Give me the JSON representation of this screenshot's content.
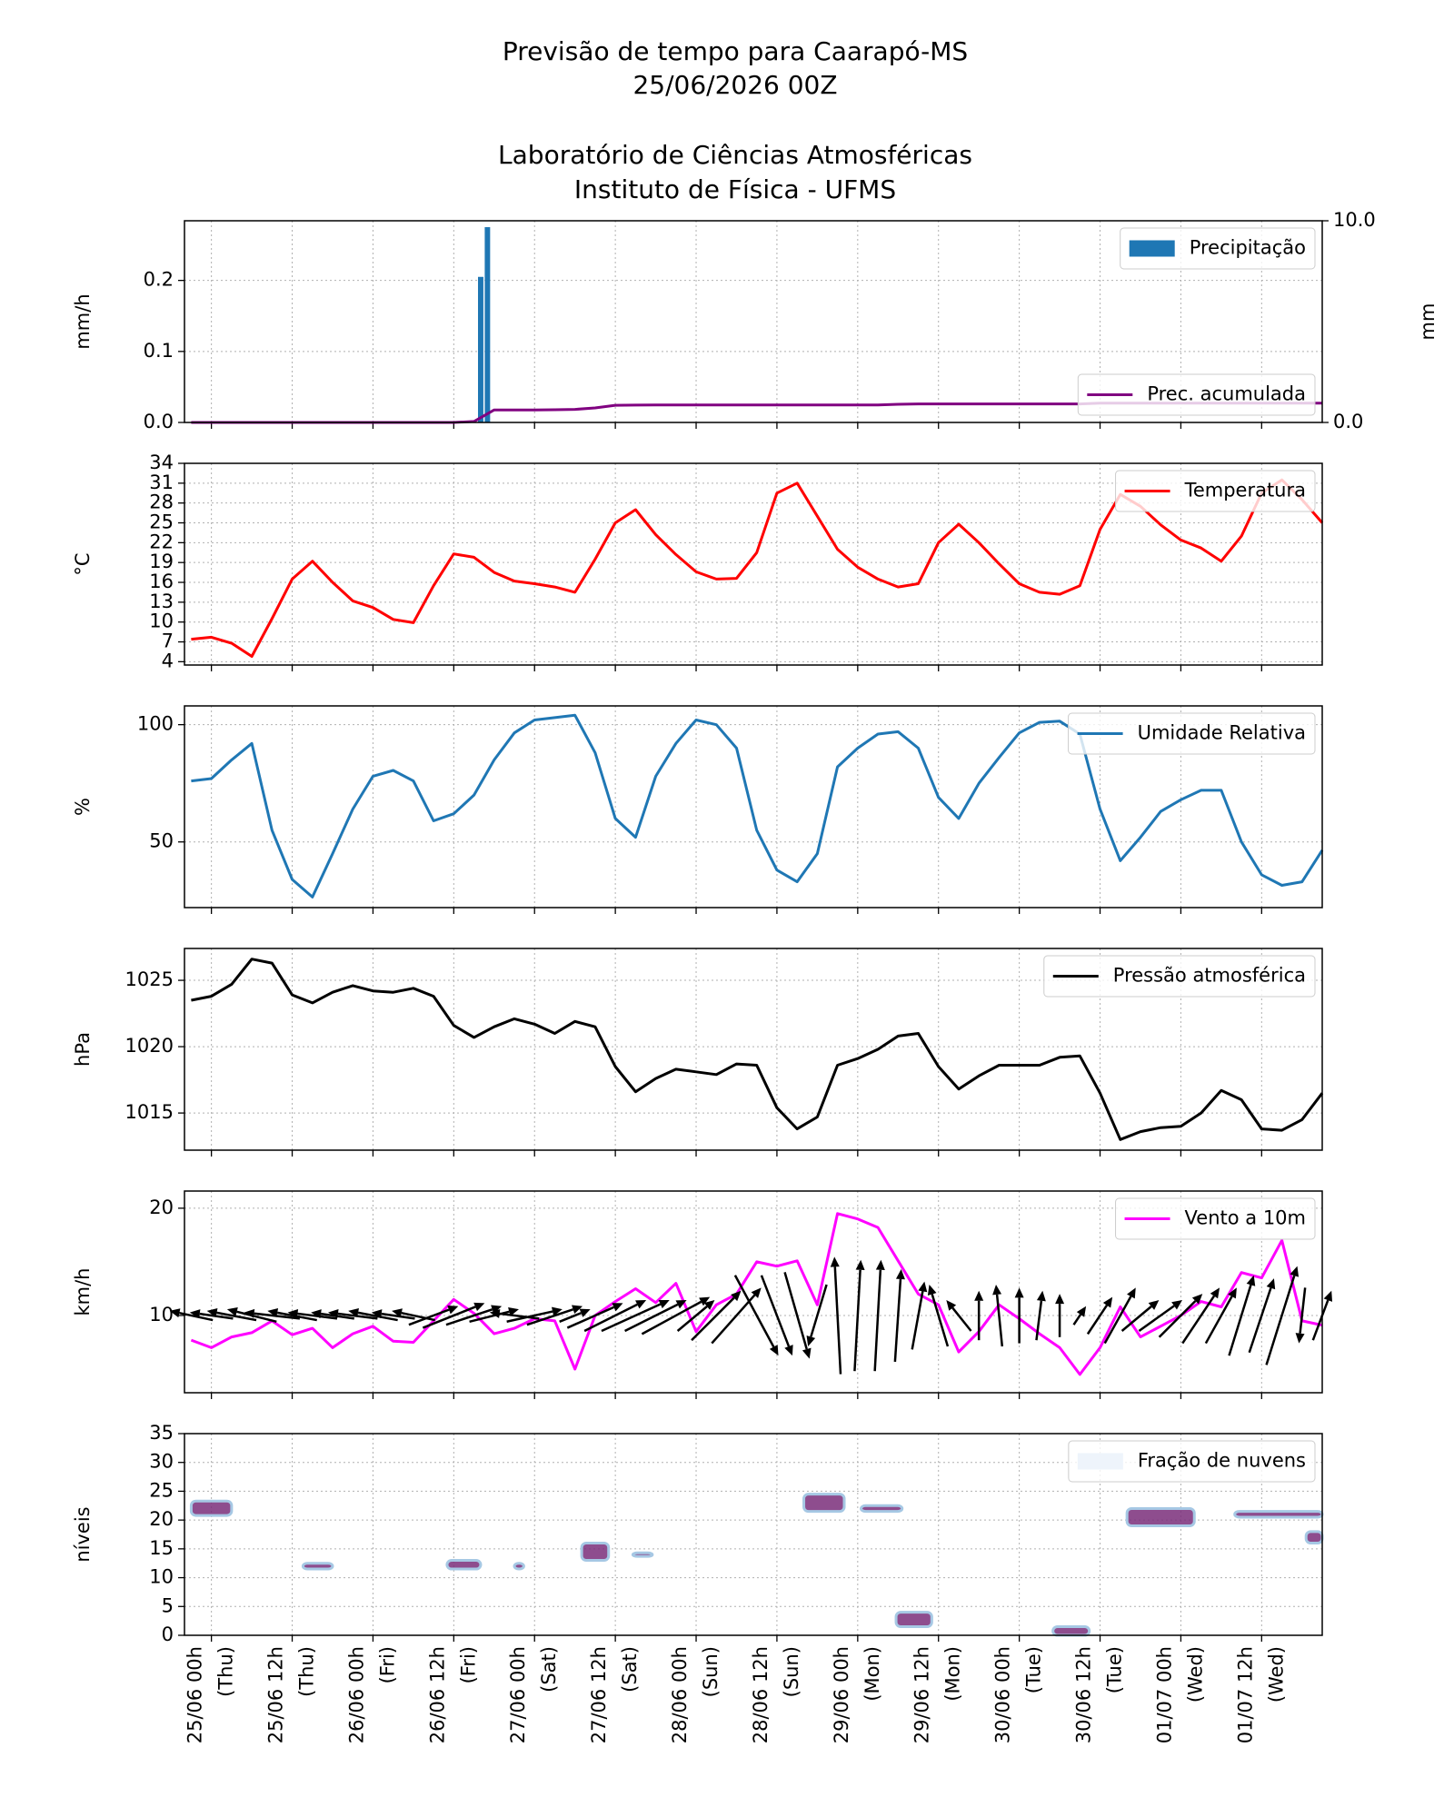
{
  "title": [
    "Previsão de tempo para Caarapó-MS",
    "25/06/2026 00Z",
    "Laboratório de Ciências Atmosféricas",
    "Instituto de Física - UFMS"
  ],
  "chart_data": [
    {
      "type": "bar",
      "ylabel": "mm/h",
      "y2label": "mm",
      "xlim": [
        -4,
        165
      ],
      "xticks": [
        0,
        12,
        24,
        36,
        48,
        60,
        72,
        84,
        96,
        108,
        120,
        132,
        144,
        156
      ],
      "ylim": [
        0,
        0.284
      ],
      "yticks": [
        {
          "value": 0,
          "label": "0.0"
        },
        0.1,
        0.2
      ],
      "y2lim": [
        0,
        10
      ],
      "y2ticks": [
        {
          "value": 0,
          "label": "0.0"
        },
        {
          "value": 10,
          "label": "10.0"
        }
      ],
      "grid": true,
      "x": [
        -3,
        0,
        3,
        6,
        9,
        12,
        15,
        18,
        21,
        24,
        27,
        30,
        33,
        36,
        39,
        42,
        45,
        48,
        51,
        54,
        57,
        60,
        63,
        66,
        69,
        72,
        75,
        78,
        81,
        84,
        87,
        90,
        93,
        96,
        99,
        102,
        105,
        108,
        111,
        114,
        117,
        120,
        123,
        126,
        129,
        132,
        135,
        138,
        141,
        144,
        147,
        150,
        153,
        156,
        159,
        162,
        165
      ],
      "series": [
        {
          "name": "Precipitação",
          "type": "bar",
          "color": "#1f77b4",
          "legend": "upper right",
          "x": [
            40,
            41
          ],
          "values": [
            0.205,
            0.275
          ]
        },
        {
          "name": "Prec. acumulada",
          "type": "line",
          "axis": "y2",
          "color": "#800080",
          "legend": "lower right",
          "values": [
            0,
            0,
            0,
            0,
            0,
            0,
            0,
            0,
            0,
            0,
            0,
            0,
            0,
            0,
            0.05,
            0.62,
            0.62,
            0.62,
            0.63,
            0.65,
            0.72,
            0.85,
            0.86,
            0.87,
            0.87,
            0.87,
            0.87,
            0.87,
            0.87,
            0.87,
            0.87,
            0.87,
            0.87,
            0.87,
            0.87,
            0.9,
            0.92,
            0.92,
            0.92,
            0.92,
            0.92,
            0.92,
            0.92,
            0.92,
            0.92,
            0.96,
            0.96,
            0.96,
            0.96,
            0.96,
            0.96,
            0.96,
            0.96,
            0.96,
            0.96,
            0.96,
            0.96
          ]
        }
      ]
    },
    {
      "type": "line",
      "ylabel": "°C",
      "xlim": [
        -4,
        165
      ],
      "xticks": [
        0,
        12,
        24,
        36,
        48,
        60,
        72,
        84,
        96,
        108,
        120,
        132,
        144,
        156
      ],
      "ylim": [
        3.5,
        34
      ],
      "yticks": [
        4,
        7,
        10,
        13,
        16,
        19,
        22,
        25,
        28,
        31,
        34
      ],
      "grid": true,
      "x": [
        -3,
        0,
        3,
        6,
        9,
        12,
        15,
        18,
        21,
        24,
        27,
        30,
        33,
        36,
        39,
        42,
        45,
        48,
        51,
        54,
        57,
        60,
        63,
        66,
        69,
        72,
        75,
        78,
        81,
        84,
        87,
        90,
        93,
        96,
        99,
        102,
        105,
        108,
        111,
        114,
        117,
        120,
        123,
        126,
        129,
        132,
        135,
        138,
        141,
        144,
        147,
        150,
        153,
        156,
        159,
        162,
        165
      ],
      "series": [
        {
          "name": "Temperatura",
          "color": "#ff0000",
          "legend": "upper right",
          "values": [
            7.4,
            7.7,
            6.8,
            4.8,
            10.5,
            16.5,
            19.2,
            16.0,
            13.2,
            12.2,
            10.4,
            9.9,
            15.5,
            20.3,
            19.8,
            17.5,
            16.2,
            15.8,
            15.3,
            14.5,
            19.5,
            25.0,
            27.0,
            23.2,
            20.2,
            17.6,
            16.5,
            16.6,
            20.5,
            29.5,
            31.0,
            26.0,
            21.0,
            18.3,
            16.5,
            15.3,
            15.8,
            22.0,
            24.8,
            22.0,
            18.8,
            15.8,
            14.5,
            14.2,
            15.5,
            24.0,
            29.3,
            27.5,
            24.7,
            22.4,
            21.2,
            19.2,
            23.0,
            29.5,
            31.5,
            28.5,
            25.0
          ]
        }
      ]
    },
    {
      "type": "line",
      "ylabel": "%",
      "xlim": [
        -4,
        165
      ],
      "xticks": [
        0,
        12,
        24,
        36,
        48,
        60,
        72,
        84,
        96,
        108,
        120,
        132,
        144,
        156
      ],
      "ylim": [
        22,
        108
      ],
      "yticks": [
        50,
        100
      ],
      "grid": true,
      "x": [
        -3,
        0,
        3,
        6,
        9,
        12,
        15,
        18,
        21,
        24,
        27,
        30,
        33,
        36,
        39,
        42,
        45,
        48,
        51,
        54,
        57,
        60,
        63,
        66,
        69,
        72,
        75,
        78,
        81,
        84,
        87,
        90,
        93,
        96,
        99,
        102,
        105,
        108,
        111,
        114,
        117,
        120,
        123,
        126,
        129,
        132,
        135,
        138,
        141,
        144,
        147,
        150,
        153,
        156,
        159,
        162,
        165
      ],
      "series": [
        {
          "name": "Umidade Relativa",
          "color": "#1f77b4",
          "legend": "upper right",
          "values": [
            76,
            77,
            85,
            92,
            55,
            34,
            26.5,
            45,
            64,
            78,
            80.5,
            76,
            59,
            62,
            70,
            85,
            96.5,
            102,
            103,
            104,
            88,
            60,
            52,
            78,
            92,
            102,
            100,
            90,
            55,
            38,
            33,
            45,
            82,
            90,
            96,
            97,
            90,
            69,
            60,
            75,
            86,
            96.5,
            101,
            101.5,
            96,
            64,
            42,
            52,
            63,
            68,
            72,
            72,
            50,
            36,
            31.5,
            33,
            46.5
          ]
        }
      ]
    },
    {
      "type": "line",
      "ylabel": "hPa",
      "xlim": [
        -4,
        165
      ],
      "xticks": [
        0,
        12,
        24,
        36,
        48,
        60,
        72,
        84,
        96,
        108,
        120,
        132,
        144,
        156
      ],
      "ylim": [
        1012.2,
        1027.4
      ],
      "yticks": [
        1015,
        1020,
        1025
      ],
      "grid": true,
      "x": [
        -3,
        0,
        3,
        6,
        9,
        12,
        15,
        18,
        21,
        24,
        27,
        30,
        33,
        36,
        39,
        42,
        45,
        48,
        51,
        54,
        57,
        60,
        63,
        66,
        69,
        72,
        75,
        78,
        81,
        84,
        87,
        90,
        93,
        96,
        99,
        102,
        105,
        108,
        111,
        114,
        117,
        120,
        123,
        126,
        129,
        132,
        135,
        138,
        141,
        144,
        147,
        150,
        153,
        156,
        159,
        162,
        165
      ],
      "series": [
        {
          "name": "Pressão atmosférica",
          "color": "#000000",
          "legend": "upper right",
          "values": [
            1023.5,
            1023.8,
            1024.7,
            1026.6,
            1026.3,
            1023.9,
            1023.3,
            1024.1,
            1024.6,
            1024.2,
            1024.1,
            1024.4,
            1023.8,
            1021.6,
            1020.7,
            1021.5,
            1022.1,
            1021.7,
            1021.0,
            1021.9,
            1021.5,
            1018.5,
            1016.6,
            1017.6,
            1018.3,
            1018.1,
            1017.9,
            1018.7,
            1018.6,
            1015.4,
            1013.8,
            1014.7,
            1018.6,
            1019.1,
            1019.8,
            1020.8,
            1021.0,
            1018.5,
            1016.8,
            1017.8,
            1018.6,
            1018.6,
            1018.6,
            1019.2,
            1019.3,
            1016.5,
            1013.0,
            1013.6,
            1013.9,
            1014.0,
            1015.0,
            1016.7,
            1016.0,
            1013.8,
            1013.7,
            1014.5,
            1016.5
          ]
        }
      ]
    },
    {
      "type": "quiver",
      "ylabel": "km/h",
      "xlim": [
        -4,
        165
      ],
      "xticks": [
        0,
        12,
        24,
        36,
        48,
        60,
        72,
        84,
        96,
        108,
        120,
        132,
        144,
        156
      ],
      "ylim": [
        2.8,
        21.6
      ],
      "yticks": [
        10,
        20
      ],
      "grid": true,
      "x": [
        -3,
        0,
        3,
        6,
        9,
        12,
        15,
        18,
        21,
        24,
        27,
        30,
        33,
        36,
        39,
        42,
        45,
        48,
        51,
        54,
        57,
        60,
        63,
        66,
        69,
        72,
        75,
        78,
        81,
        84,
        87,
        90,
        93,
        96,
        99,
        102,
        105,
        108,
        111,
        114,
        117,
        120,
        123,
        126,
        129,
        132,
        135,
        138,
        141,
        144,
        147,
        150,
        153,
        156,
        159,
        162,
        165
      ],
      "series": [
        {
          "name": "Vento a 10m",
          "color": "#ff00ff",
          "legend": "upper right",
          "values": [
            7.7,
            7.0,
            8.0,
            8.4,
            9.5,
            8.2,
            8.8,
            7.0,
            8.3,
            9.0,
            7.6,
            7.5,
            9.5,
            11.5,
            10.2,
            8.3,
            8.8,
            9.7,
            9.5,
            5.0,
            10.0,
            11.3,
            12.5,
            11.2,
            13.0,
            8.5,
            11.0,
            12.0,
            15.0,
            14.6,
            15.1,
            11.0,
            19.5,
            19.0,
            18.2,
            15.1,
            12.0,
            11.0,
            6.6,
            8.5,
            11.0,
            9.7,
            8.3,
            7.0,
            4.5,
            7.0,
            10.8,
            8.0,
            9.0,
            10.0,
            11.3,
            10.8,
            14.0,
            13.5,
            17.0,
            9.5,
            9.1
          ]
        }
      ],
      "arrows": {
        "color": "#000000",
        "level": 10,
        "u": [
          -7,
          -7,
          -8,
          -8,
          -9,
          -8,
          -8,
          -7,
          -8,
          -8,
          -7,
          -7,
          8,
          10,
          9,
          8,
          -8,
          9,
          9,
          5,
          9,
          10,
          11,
          10,
          11,
          6,
          8,
          8,
          7,
          5,
          4,
          -3,
          -1,
          1,
          1,
          1,
          2,
          -3,
          -4,
          0,
          -1,
          0,
          1,
          0,
          2,
          4,
          5,
          6,
          7,
          7,
          6,
          5,
          4,
          4,
          5,
          -1,
          3
        ],
        "v": [
          1.5,
          1,
          1.5,
          2,
          1,
          1.5,
          1,
          1,
          1,
          1.5,
          1,
          1.5,
          3,
          4,
          3,
          2,
          1,
          2,
          3,
          2,
          4,
          5,
          5,
          5,
          6,
          5,
          8,
          9,
          -13,
          -13,
          -14,
          -10,
          19,
          18,
          18,
          15,
          11,
          10,
          5,
          8,
          10,
          9,
          8,
          7,
          3,
          6,
          9,
          5,
          5,
          7,
          9,
          9,
          13,
          12,
          16,
          -9,
          8
        ]
      }
    },
    {
      "type": "contourf",
      "ylabel": "níveis",
      "xlim": [
        -4,
        165
      ],
      "xticks": [
        {
          "value": 0,
          "label": [
            "25/06 00h",
            "(Thu)"
          ]
        },
        {
          "value": 12,
          "label": [
            "25/06 12h",
            "(Thu)"
          ]
        },
        {
          "value": 24,
          "label": [
            "26/06 00h",
            "(Fri)"
          ]
        },
        {
          "value": 36,
          "label": [
            "26/06 12h",
            "(Fri)"
          ]
        },
        {
          "value": 48,
          "label": [
            "27/06 00h",
            "(Sat)"
          ]
        },
        {
          "value": 60,
          "label": [
            "27/06 12h",
            "(Sat)"
          ]
        },
        {
          "value": 72,
          "label": [
            "28/06 00h",
            "(Sun)"
          ]
        },
        {
          "value": 84,
          "label": [
            "28/06 12h",
            "(Sun)"
          ]
        },
        {
          "value": 96,
          "label": [
            "29/06 00h",
            "(Mon)"
          ]
        },
        {
          "value": 108,
          "label": [
            "29/06 12h",
            "(Mon)"
          ]
        },
        {
          "value": 120,
          "label": [
            "30/06 00h",
            "(Tue)"
          ]
        },
        {
          "value": 132,
          "label": [
            "30/06 12h",
            "(Tue)"
          ]
        },
        {
          "value": 144,
          "label": [
            "01/07 00h",
            "(Wed)"
          ]
        },
        {
          "value": 156,
          "label": [
            "01/07 12h",
            "(Wed)"
          ]
        }
      ],
      "ylim": [
        0,
        35
      ],
      "yticks": [
        0,
        5,
        10,
        15,
        20,
        25,
        30,
        35
      ],
      "grid": true,
      "series": [
        {
          "name": "Fração de nuvens",
          "color": "#eef4fb",
          "legend": "upper right"
        }
      ],
      "patch_color": "#7a2e7a",
      "edge_color": "#a6c8e4",
      "patches": [
        {
          "x": [
            -3,
            3
          ],
          "levels": [
            20.8,
            23.3
          ]
        },
        {
          "x": [
            13.6,
            18
          ],
          "levels": [
            11.5,
            12.5
          ]
        },
        {
          "x": [
            35,
            40
          ],
          "levels": [
            11.5,
            13
          ]
        },
        {
          "x": [
            45,
            46.4
          ],
          "levels": [
            11.5,
            12.5
          ]
        },
        {
          "x": [
            55,
            59
          ],
          "levels": [
            13,
            16
          ]
        },
        {
          "x": [
            62.6,
            65.5
          ],
          "levels": [
            13.7,
            14.3
          ]
        },
        {
          "x": [
            88,
            94
          ],
          "levels": [
            21.5,
            24.5
          ]
        },
        {
          "x": [
            96.5,
            102.6
          ],
          "levels": [
            21.5,
            22.5
          ]
        },
        {
          "x": [
            101.7,
            107
          ],
          "levels": [
            1.5,
            4
          ]
        },
        {
          "x": [
            125,
            130.4
          ],
          "levels": [
            0,
            1.5
          ]
        },
        {
          "x": [
            136,
            146
          ],
          "levels": [
            19,
            22
          ]
        },
        {
          "x": [
            152,
            165
          ],
          "levels": [
            20.5,
            21.5
          ]
        },
        {
          "x": [
            162.6,
            165
          ],
          "levels": [
            16,
            18
          ]
        }
      ]
    }
  ]
}
